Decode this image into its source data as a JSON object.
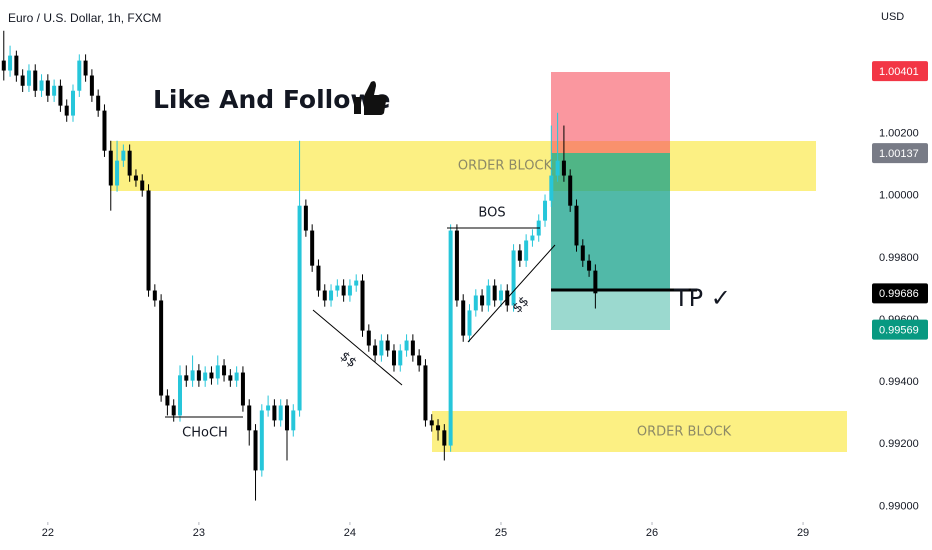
{
  "chart_data": {
    "type": "candlestick",
    "title": "Euro / U.S. Dollar, 1h, FXCM",
    "currency": "USD",
    "up_color": "#26c6da",
    "down_color": "#000000",
    "grid": false,
    "xlim": [
      -7.6,
      130
    ],
    "xticks": [
      {
        "value": 0,
        "label": "22"
      },
      {
        "value": 24,
        "label": "23"
      },
      {
        "value": 48,
        "label": "24"
      },
      {
        "value": 72,
        "label": "25"
      },
      {
        "value": 96,
        "label": "26"
      },
      {
        "value": 120,
        "label": "29"
      }
    ],
    "ylim": [
      0.9895,
      1.0063
    ],
    "yticks": [
      {
        "value": 1.002,
        "label": "1.00200"
      },
      {
        "value": 1.0,
        "label": "1.00000"
      },
      {
        "value": 0.998,
        "label": "0.99800"
      },
      {
        "value": 0.996,
        "label": "0.99600"
      },
      {
        "value": 0.994,
        "label": "0.99400"
      },
      {
        "value": 0.992,
        "label": "0.99200"
      },
      {
        "value": 0.99,
        "label": "0.99000"
      }
    ],
    "price_markers": [
      {
        "value": 1.00401,
        "color": "#f23645"
      },
      {
        "value": 1.00137,
        "color": "#787b86"
      },
      {
        "value": 0.99686,
        "color": "#000000"
      },
      {
        "value": 0.99569,
        "color": "#089981"
      }
    ],
    "x": [
      -7,
      -6,
      -5,
      -4,
      -3,
      -2,
      -1,
      0,
      1,
      2,
      3,
      4,
      5,
      6,
      7,
      8,
      9,
      10,
      11,
      12,
      13,
      14,
      15,
      16,
      17,
      18,
      19,
      20,
      21,
      22,
      23,
      24,
      25,
      26,
      27,
      28,
      29,
      30,
      31,
      32,
      33,
      34,
      35,
      36,
      37,
      38,
      39,
      40,
      41,
      42,
      43,
      44,
      45,
      46,
      47,
      48,
      49,
      50,
      51,
      52,
      53,
      54,
      55,
      56,
      57,
      58,
      59,
      60,
      61,
      62,
      63,
      64,
      65,
      66,
      67,
      68,
      69,
      70,
      71,
      72,
      73,
      74,
      75,
      76,
      77,
      78,
      79,
      80,
      81,
      82,
      83,
      84,
      85,
      86,
      87
    ],
    "open": [
      1.00435,
      1.00403,
      1.00451,
      1.00387,
      1.00354,
      1.00403,
      1.00338,
      1.00371,
      1.00322,
      1.00354,
      1.0029,
      1.00258,
      1.00338,
      1.00435,
      1.00387,
      1.00322,
      1.00274,
      1.00145,
      1.00033,
      1.00113,
      1.00145,
      1.00065,
      1.00049,
      1.00017,
      0.99695,
      0.99663,
      0.99357,
      0.99325,
      0.99293,
      0.99422,
      0.99405,
      0.99438,
      0.99405,
      0.99431,
      0.99412,
      0.99454,
      0.99422,
      0.99405,
      0.99431,
      0.99325,
      0.99245,
      0.99116,
      0.99309,
      0.99325,
      0.99277,
      0.99325,
      0.99245,
      0.99309,
      0.99968,
      0.99888,
      0.99775,
      0.99695,
      0.99663,
      0.99695,
      0.99711,
      0.99679,
      0.99711,
      0.99727,
      0.99566,
      0.99518,
      0.99486,
      0.99534,
      0.99502,
      0.99454,
      0.99502,
      0.99534,
      0.99486,
      0.99454,
      0.99277,
      0.99261,
      0.99245,
      0.99196,
      0.99888,
      0.99663,
      0.9955,
      0.99631,
      0.99679,
      0.99647,
      0.99711,
      0.99663,
      0.99695,
      0.99647,
      0.99824,
      0.99791,
      0.99856,
      0.99872,
      0.9992,
      0.99984,
      1.00065,
      1.00113,
      1.00065,
      0.99968,
      0.9984,
      0.99791,
      0.99759
    ],
    "high": [
      1.00531,
      1.00483,
      1.00467,
      1.00407,
      1.00423,
      1.00423,
      1.00391,
      1.00391,
      1.00374,
      1.00374,
      1.0031,
      1.00358,
      1.00455,
      1.00455,
      1.00407,
      1.00342,
      1.00294,
      1.00177,
      1.00177,
      1.00165,
      1.00165,
      1.00085,
      1.00069,
      1.00037,
      0.99715,
      0.99683,
      0.99377,
      0.99345,
      0.99454,
      0.99454,
      0.99486,
      0.99458,
      0.99451,
      0.99451,
      0.99486,
      0.99474,
      0.99442,
      0.99451,
      0.99451,
      0.99345,
      0.99265,
      0.99329,
      0.99357,
      0.99345,
      0.99345,
      0.99345,
      0.99329,
      1.00177,
      0.99988,
      0.99908,
      0.99795,
      0.99715,
      0.99715,
      0.99731,
      0.99731,
      0.99731,
      0.99747,
      0.99747,
      0.99586,
      0.99538,
      0.99554,
      0.99554,
      0.99522,
      0.99522,
      0.99554,
      0.99554,
      0.99506,
      0.99474,
      0.99297,
      0.99281,
      0.99265,
      0.99908,
      0.99908,
      0.99683,
      0.99651,
      0.99699,
      0.99699,
      0.99731,
      0.99731,
      0.99715,
      0.99715,
      0.99844,
      0.99844,
      0.99876,
      0.99892,
      0.9994,
      1.00004,
      1.00226,
      1.00267,
      1.00226,
      1.00085,
      0.99988,
      0.9986,
      0.99811,
      0.99779
    ],
    "low": [
      1.00371,
      1.00383,
      1.00367,
      1.00334,
      1.00334,
      1.00318,
      1.00318,
      1.00302,
      1.00302,
      1.0027,
      1.00238,
      1.00238,
      1.00318,
      1.00367,
      1.00302,
      1.00254,
      1.00125,
      0.99952,
      1.00013,
      1.00093,
      1.00045,
      1.00029,
      0.99997,
      0.99675,
      0.99643,
      0.99337,
      0.99293,
      0.99273,
      0.99273,
      0.99385,
      0.99385,
      0.99385,
      0.99385,
      0.99392,
      0.99392,
      0.99402,
      0.99385,
      0.99385,
      0.99305,
      0.99196,
      0.99019,
      0.99096,
      0.99289,
      0.99257,
      0.99257,
      0.99148,
      0.99225,
      0.99289,
      0.99868,
      0.99755,
      0.99675,
      0.99643,
      0.99643,
      0.99675,
      0.99659,
      0.99659,
      0.99691,
      0.99546,
      0.99498,
      0.99466,
      0.99466,
      0.99482,
      0.99434,
      0.99434,
      0.99482,
      0.99466,
      0.99434,
      0.99257,
      0.99241,
      0.99212,
      0.99148,
      0.99176,
      0.99643,
      0.9953,
      0.9953,
      0.99611,
      0.99627,
      0.99627,
      0.99643,
      0.99643,
      0.99627,
      0.99627,
      0.99771,
      0.99771,
      0.99836,
      0.99852,
      0.999,
      0.99964,
      1.00045,
      1.00045,
      0.99948,
      0.9982,
      0.99771,
      0.99739,
      0.99637
    ],
    "close": [
      1.00403,
      1.00451,
      1.00387,
      1.00354,
      1.00403,
      1.00338,
      1.00371,
      1.00322,
      1.00354,
      1.0029,
      1.00258,
      1.00338,
      1.00435,
      1.00387,
      1.00322,
      1.00274,
      1.00145,
      1.00033,
      1.00113,
      1.00145,
      1.00065,
      1.00049,
      1.00017,
      0.99695,
      0.99663,
      0.99357,
      0.99325,
      0.99293,
      0.99422,
      0.99405,
      0.99438,
      0.99405,
      0.99431,
      0.99412,
      0.99454,
      0.99422,
      0.99405,
      0.99431,
      0.99325,
      0.99245,
      0.99116,
      0.99309,
      0.99325,
      0.99277,
      0.99325,
      0.99245,
      0.99309,
      0.99968,
      0.99888,
      0.99775,
      0.99695,
      0.99663,
      0.99695,
      0.99711,
      0.99679,
      0.99711,
      0.99727,
      0.99566,
      0.99518,
      0.99486,
      0.99534,
      0.99502,
      0.99454,
      0.99502,
      0.99534,
      0.99486,
      0.99454,
      0.99277,
      0.99261,
      0.99245,
      0.99196,
      0.99888,
      0.99663,
      0.9955,
      0.99631,
      0.99679,
      0.99647,
      0.99711,
      0.99663,
      0.99695,
      0.99647,
      0.99824,
      0.99791,
      0.99856,
      0.99872,
      0.9992,
      0.99984,
      1.00065,
      1.00113,
      1.00065,
      0.99968,
      0.9984,
      0.99791,
      0.99759,
      0.99686
    ],
    "annotations": {
      "headline": "Like And Followe",
      "order_block_top": "ORDER BLOCK",
      "order_block_bottom": "ORDER BLOCK",
      "choch": "CHoCH",
      "bos": "BOS",
      "liquidity_1": "$$",
      "liquidity_2": "$$",
      "tp": "TP ✓"
    }
  }
}
